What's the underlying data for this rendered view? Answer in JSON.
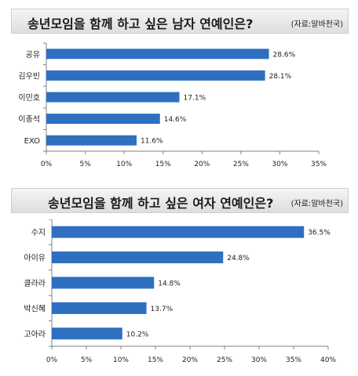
{
  "colors": {
    "bar": "#2e6fc0",
    "axis": "#808080",
    "title_bg": "#e6e6e6"
  },
  "chart_data": [
    {
      "type": "bar",
      "orientation": "horizontal",
      "title": "송년모임을 함께 하고 싶은 남자 연예인은?",
      "source": "(자료:알바천국)",
      "categories": [
        "공유",
        "김우빈",
        "이민호",
        "이종석",
        "EXO"
      ],
      "values": [
        28.6,
        28.1,
        17.1,
        14.6,
        11.6
      ],
      "value_labels": [
        "28.6%",
        "28.1%",
        "17.1%",
        "14.6%",
        "11.6%"
      ],
      "xlim": [
        0,
        35
      ],
      "xticks": [
        "0%",
        "5%",
        "10%",
        "15%",
        "20%",
        "25%",
        "30%",
        "35%"
      ],
      "grid": false,
      "legend": false
    },
    {
      "type": "bar",
      "orientation": "horizontal",
      "title": "송년모임을 함께 하고 싶은 여자 연예인은?",
      "source": "(자료:알바천국)",
      "categories": [
        "수지",
        "아이유",
        "클라라",
        "박신혜",
        "고아라"
      ],
      "values": [
        36.5,
        24.8,
        14.8,
        13.7,
        10.2
      ],
      "value_labels": [
        "36.5%",
        "24.8%",
        "14.8%",
        "13.7%",
        "10.2%"
      ],
      "xlim": [
        0,
        40
      ],
      "xticks": [
        "0%",
        "5%",
        "10%",
        "15%",
        "20%",
        "25%",
        "30%",
        "35%",
        "40%"
      ],
      "grid": false,
      "legend": false
    }
  ]
}
